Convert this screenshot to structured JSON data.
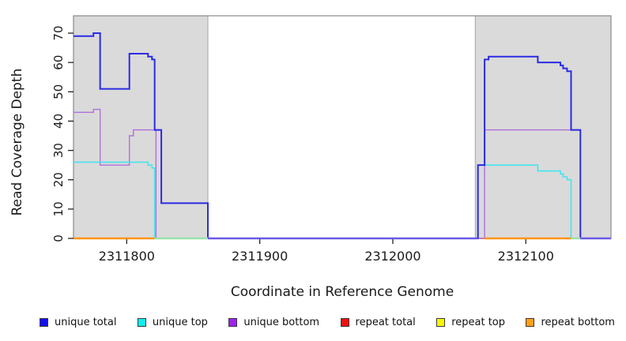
{
  "chart_data": {
    "type": "line",
    "subtype": "step-coverage",
    "title": "",
    "xlabel": "Coordinate in Reference Genome",
    "ylabel": "Read Coverage Depth",
    "xlim": [
      2311760,
      2312164
    ],
    "ylim": [
      0,
      70
    ],
    "grid": "off",
    "legend_position": "bottom",
    "x_ticks": [
      {
        "value": 2311800,
        "label": "2311800"
      },
      {
        "value": 2311900,
        "label": "2311900"
      },
      {
        "value": 2312000,
        "label": "2312000"
      },
      {
        "value": 2312100,
        "label": "2312100"
      }
    ],
    "y_ticks": [
      {
        "value": 0,
        "label": "0"
      },
      {
        "value": 10,
        "label": "10"
      },
      {
        "value": 20,
        "label": "20"
      },
      {
        "value": 30,
        "label": "30"
      },
      {
        "value": 40,
        "label": "40"
      },
      {
        "value": 50,
        "label": "50"
      },
      {
        "value": 60,
        "label": "60"
      },
      {
        "value": 70,
        "label": "70"
      }
    ],
    "shaded_regions": [
      {
        "x0": 2311760,
        "x1": 2311861
      },
      {
        "x0": 2312062,
        "x1": 2312164
      }
    ],
    "region_fill": "#dadada",
    "region_border": "#a6a6a6",
    "box_border": "#8a8a8a",
    "series": [
      {
        "name": "repeat total",
        "color": "#e01010",
        "width": 1.4,
        "points": [
          [
            2311760,
            0
          ],
          [
            2312164,
            0
          ]
        ]
      },
      {
        "name": "repeat top",
        "color": "#f0f000",
        "width": 1.4,
        "points": [
          [
            2311760,
            0
          ],
          [
            2312164,
            0
          ]
        ]
      },
      {
        "name": "repeat bottom",
        "color": "#ff9612",
        "width": 1.4,
        "points": [
          [
            2311760,
            0
          ],
          [
            2312164,
            0
          ]
        ]
      },
      {
        "name": "unique bottom",
        "color": "#b36fdb",
        "width": 1.4,
        "points": [
          [
            2311760,
            43
          ],
          [
            2311775,
            44
          ],
          [
            2311780,
            25
          ],
          [
            2311802,
            35
          ],
          [
            2311805,
            37
          ],
          [
            2311822,
            0
          ],
          [
            2312069,
            37
          ],
          [
            2312141,
            0
          ],
          [
            2312164,
            0
          ]
        ]
      },
      {
        "name": "unique top",
        "color": "#45e4ee",
        "width": 1.6,
        "points": [
          [
            2311760,
            26
          ],
          [
            2311816,
            25
          ],
          [
            2311819,
            24
          ],
          [
            2311821,
            0
          ],
          [
            2312064,
            25
          ],
          [
            2312109,
            23
          ],
          [
            2312126,
            22
          ],
          [
            2312128,
            21
          ],
          [
            2312131,
            20
          ],
          [
            2312134,
            0
          ],
          [
            2312164,
            0
          ]
        ]
      },
      {
        "name": "unique total",
        "color": "#2b2be2",
        "width": 2,
        "points": [
          [
            2311760,
            69
          ],
          [
            2311775,
            70
          ],
          [
            2311780,
            51
          ],
          [
            2311802,
            63
          ],
          [
            2311816,
            62
          ],
          [
            2311819,
            61
          ],
          [
            2311821,
            37
          ],
          [
            2311826,
            12
          ],
          [
            2311861,
            0
          ],
          [
            2312064,
            25
          ],
          [
            2312069,
            61
          ],
          [
            2312072,
            62
          ],
          [
            2312109,
            60
          ],
          [
            2312126,
            59
          ],
          [
            2312128,
            58
          ],
          [
            2312131,
            57
          ],
          [
            2312134,
            37
          ],
          [
            2312141,
            0
          ],
          [
            2312164,
            0
          ]
        ]
      }
    ],
    "baseline_segments": [
      {
        "color": "#ff9612",
        "x0": 2311760,
        "x1": 2311821
      },
      {
        "color": "#98e3ab",
        "x0": 2311821,
        "x1": 2311861
      },
      {
        "color": "#6a5ae6",
        "x0": 2311861,
        "x1": 2312064
      },
      {
        "color": "#ff9612",
        "x0": 2312069,
        "x1": 2312134
      },
      {
        "color": "#98e3ab",
        "x0": 2312134,
        "x1": 2312141
      },
      {
        "color": "#6a5ae6",
        "x0": 2312141,
        "x1": 2312164
      }
    ],
    "legend": [
      {
        "label": "unique total",
        "color": "#1111ee"
      },
      {
        "label": "unique top",
        "color": "#11eeee"
      },
      {
        "label": "unique bottom",
        "color": "#a020f0"
      },
      {
        "label": "repeat total",
        "color": "#ee1111"
      },
      {
        "label": "repeat top",
        "color": "#f8f800"
      },
      {
        "label": "repeat bottom",
        "color": "#ffa018"
      }
    ]
  }
}
